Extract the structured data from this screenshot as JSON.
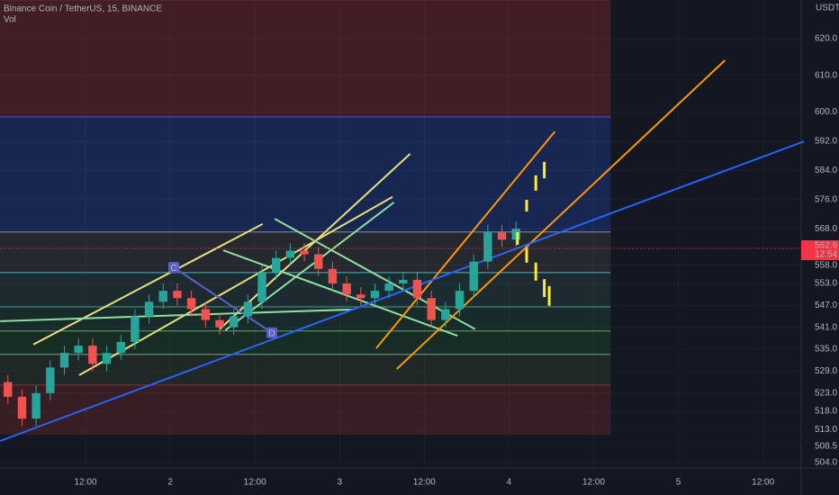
{
  "header": {
    "title": "Binance Coin / TetherUS, 15, BINANCE",
    "indicator": "Vol",
    "currency": "USDT"
  },
  "chart_data": {
    "type": "candlestick",
    "xlim": [
      -0.12,
      113.4
    ],
    "ylim": [
      502.5,
      630.6
    ],
    "xticks": [
      {
        "value": 12,
        "label": "12:00"
      },
      {
        "value": 24,
        "label": "2"
      },
      {
        "value": 36,
        "label": "12:00"
      },
      {
        "value": 48,
        "label": "3"
      },
      {
        "value": 60,
        "label": "12:00"
      },
      {
        "value": 72,
        "label": "4"
      },
      {
        "value": 84,
        "label": "12:00"
      },
      {
        "value": 96,
        "label": "5"
      },
      {
        "value": 108,
        "label": "12:00"
      }
    ],
    "yticks": [
      {
        "value": 620,
        "label": "620.0"
      },
      {
        "value": 610,
        "label": "610.0"
      },
      {
        "value": 600,
        "label": "600.0"
      },
      {
        "value": 592,
        "label": "592.0"
      },
      {
        "value": 584,
        "label": "584.0"
      },
      {
        "value": 576,
        "label": "576.0"
      },
      {
        "value": 568,
        "label": "568.0"
      },
      {
        "value": 558,
        "label": "558.0"
      },
      {
        "value": 553,
        "label": "553.0"
      },
      {
        "value": 547,
        "label": "547.0"
      },
      {
        "value": 541,
        "label": "541.0"
      },
      {
        "value": 535,
        "label": "535.0"
      },
      {
        "value": 529,
        "label": "529.0"
      },
      {
        "value": 523,
        "label": "523.0"
      },
      {
        "value": 518,
        "label": "518.0"
      },
      {
        "value": 513,
        "label": "513.0"
      },
      508.5,
      {
        "value": 504,
        "label": "504.0"
      }
    ],
    "grid": true,
    "up_color": "#26a69a",
    "down_color": "#ef5350",
    "x": [
      1,
      3,
      5,
      7,
      9,
      11,
      13,
      15,
      17,
      19,
      21,
      23,
      25,
      27,
      29,
      31,
      33,
      35,
      37,
      39,
      41,
      43,
      45,
      47,
      49,
      51,
      53,
      55,
      57,
      59,
      61,
      63,
      65,
      67,
      69,
      71,
      73
    ],
    "open": [
      526,
      522,
      516,
      523,
      530,
      534,
      536,
      531,
      534,
      537,
      544,
      548,
      551,
      549,
      546,
      543,
      541,
      544,
      548,
      556,
      560,
      562,
      561,
      557,
      553,
      550,
      549,
      551,
      553,
      554,
      549,
      543,
      546,
      551,
      559,
      567,
      565
    ],
    "high": [
      528,
      524,
      525,
      532,
      536,
      538,
      538,
      536,
      539,
      546,
      550,
      553,
      553,
      551,
      548,
      545,
      546,
      550,
      558,
      562,
      564,
      564,
      563,
      559,
      555,
      552,
      553,
      555,
      556,
      556,
      551,
      548,
      553,
      561,
      569,
      569,
      570
    ],
    "low": [
      520,
      514,
      514,
      521,
      528,
      532,
      529,
      529,
      532,
      535,
      542,
      546,
      547,
      544,
      541,
      539,
      539,
      542,
      546,
      554,
      558,
      559,
      555,
      551,
      548,
      547,
      547,
      549,
      551,
      547,
      541,
      541,
      544,
      549,
      557,
      563,
      563
    ],
    "close": [
      522,
      516,
      523,
      530,
      534,
      536,
      531,
      534,
      537,
      544,
      548,
      551,
      549,
      546,
      543,
      541,
      544,
      548,
      556,
      560,
      562,
      561,
      557,
      553,
      550,
      549,
      551,
      553,
      554,
      549,
      543,
      546,
      551,
      559,
      567,
      565,
      568
    ],
    "zones": [
      {
        "from": 598.6,
        "to": 630.6,
        "x_end": 86.4,
        "color": "#4a1f24",
        "edge": "#6d2a30"
      },
      {
        "from": 567.1,
        "to": 598.6,
        "x_end": 86.4,
        "color": "#1a2a5a",
        "edge": "#3b5bdb"
      },
      {
        "from": 556.0,
        "to": 567.1,
        "x_end": 86.4,
        "color": "#2a2c33",
        "edge": "#8a8d96"
      },
      {
        "from": 546.6,
        "to": 556.0,
        "x_end": 86.4,
        "color": "#1f2f33",
        "edge": "#4fb3bf"
      },
      {
        "from": 540.0,
        "to": 546.6,
        "x_end": 86.4,
        "color": "#1a2e2a",
        "edge": "#4c9a8a"
      },
      {
        "from": 533.6,
        "to": 540.0,
        "x_end": 86.4,
        "color": "#183024",
        "edge": "#5aa86b"
      },
      {
        "from": 525.2,
        "to": 533.6,
        "x_end": 86.4,
        "color": "#222a28",
        "edge": "#7a9e8a"
      },
      {
        "from": 511.6,
        "to": 525.2,
        "x_end": 86.4,
        "color": "#3e1e24",
        "edge": "#8a2f38"
      }
    ],
    "lines": [
      {
        "x": [
          4.6,
          37.1
        ],
        "y": [
          536.3,
          569.3
        ],
        "color": "#e6e07a"
      },
      {
        "x": [
          11.1,
          55.5
        ],
        "y": [
          527.9,
          576.7
        ],
        "color": "#e6e07a"
      },
      {
        "x": [
          31.0,
          58.0
        ],
        "y": [
          540.5,
          588.5
        ],
        "color": "#e6e07a"
      },
      {
        "x": [
          -0.1,
          50.0
        ],
        "y": [
          542.7,
          545.9
        ],
        "color": "#8fe0a0"
      },
      {
        "x": [
          31.8,
          55.7
        ],
        "y": [
          540.2,
          575.2
        ],
        "color": "#8fe0a0"
      },
      {
        "x": [
          38.8,
          67.2
        ],
        "y": [
          570.7,
          540.5
        ],
        "color": "#8fe0a0"
      },
      {
        "x": [
          31.5,
          64.7
        ],
        "y": [
          562.1,
          538.7
        ],
        "color": "#8fe0a0"
      },
      {
        "x": [
          53.2,
          78.5
        ],
        "y": [
          535.3,
          594.6
        ],
        "color": "#ff9800"
      },
      {
        "x": [
          56.1,
          102.6
        ],
        "y": [
          529.6,
          614.1
        ],
        "color": "#ff9800"
      },
      {
        "x": [
          -0.1,
          113.8
        ],
        "y": [
          509.9,
          591.9
        ],
        "color": "#2962ff"
      },
      {
        "x": [
          24.5,
          38.4
        ],
        "y": [
          557.4,
          539.5
        ],
        "color": "#5c5fc7"
      }
    ],
    "points": [
      {
        "label": "C",
        "x": 24.5,
        "y": 557.4
      },
      {
        "label": "D",
        "x": 38.4,
        "y": 539.5
      }
    ],
    "projection": {
      "color": "#ffeb3b",
      "bars": [
        {
          "x": 74.5,
          "low": 572.7,
          "high": 575.9
        },
        {
          "x": 75.8,
          "low": 578.4,
          "high": 582.6
        },
        {
          "x": 77.0,
          "low": 581.8,
          "high": 586.3
        },
        {
          "x": 73.2,
          "low": 563.6,
          "high": 567.1
        },
        {
          "x": 74.5,
          "low": 558.7,
          "high": 562.9
        },
        {
          "x": 75.8,
          "low": 553.8,
          "high": 558.7
        },
        {
          "x": 77.0,
          "low": 549.3,
          "high": 554.2
        },
        {
          "x": 77.7,
          "low": 546.9,
          "high": 552.3
        }
      ]
    },
    "last_price": {
      "value": 562.6,
      "countdown": "12:54",
      "color": "#f23645"
    }
  }
}
